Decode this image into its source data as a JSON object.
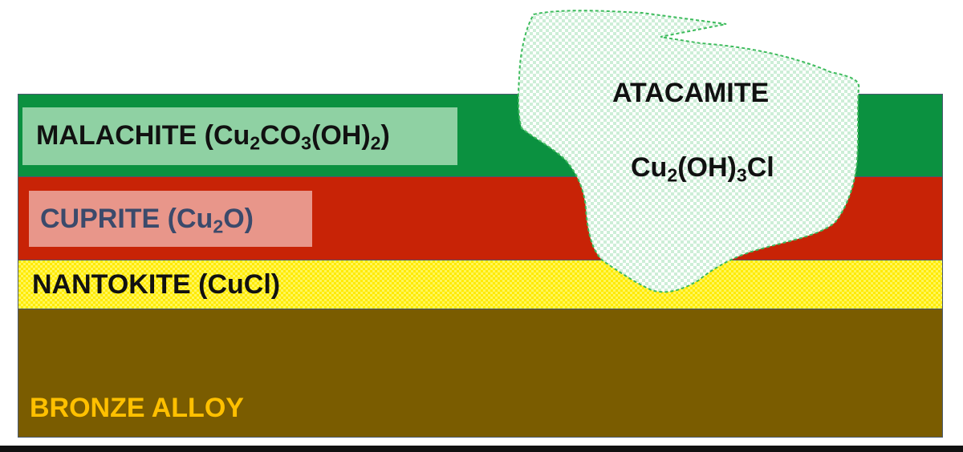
{
  "layers": {
    "malachite": {
      "color": "#0b9140",
      "label_color": "#111111",
      "box_color": "#8fd1a3",
      "label": {
        "name": "MALACHITE (Cu",
        "s1": "2",
        "mid": "CO",
        "s2": "3",
        "mid2": "(OH)",
        "s3": "2",
        "end": ")"
      }
    },
    "cuprite": {
      "color": "#c82306",
      "label_color": "#3b4a6b",
      "box_color": "#e8968a",
      "label": {
        "name": "CUPRITE (Cu",
        "s1": "2",
        "end": "O)"
      }
    },
    "nantokite": {
      "color": "#ffea00",
      "label": "NANTOKITE (CuCl)"
    },
    "bronze": {
      "color": "#7a5c00",
      "label_color": "#ffc000",
      "label": "BRONZE ALLOY"
    }
  },
  "atacamite": {
    "title": "ATACAMITE",
    "fill_color": "#cdeed7",
    "check_color": "#ffffff",
    "outline_color": "#3dbb5c",
    "formula": {
      "a": "Cu",
      "s1": "2",
      "b": "(OH)",
      "s2": "3",
      "c": "Cl"
    }
  }
}
